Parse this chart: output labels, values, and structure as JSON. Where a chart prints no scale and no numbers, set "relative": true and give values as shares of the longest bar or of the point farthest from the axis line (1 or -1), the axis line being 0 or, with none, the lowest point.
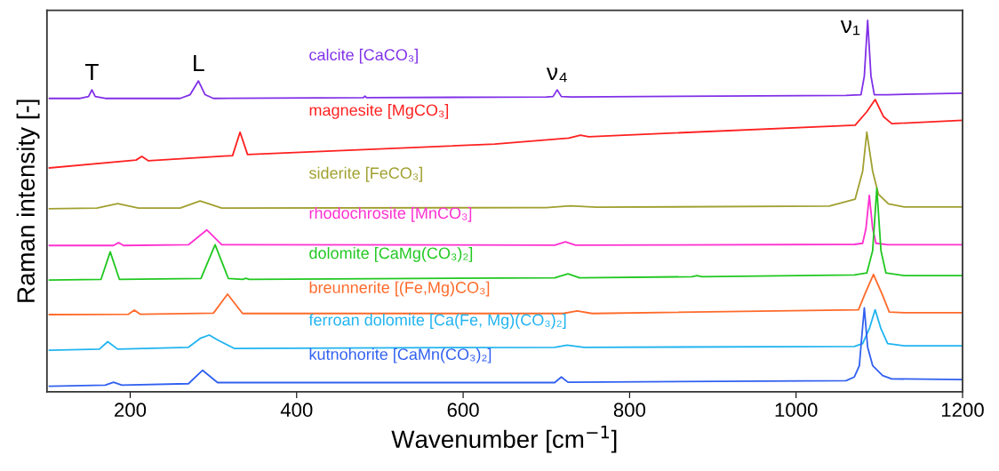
{
  "chart_data": {
    "type": "line",
    "relative": true,
    "xlabel": "Wavenumber [cm$^{−1}$]",
    "ylabel": "Raman intensity [-]",
    "xlim": [
      100,
      1200
    ],
    "xticks": [
      200,
      400,
      600,
      800,
      1000,
      1200
    ],
    "grid": false,
    "marker": "none",
    "line_style": "solid",
    "annotations": [
      {
        "text": "T",
        "x": 154,
        "y": 0.813
      },
      {
        "text": "L",
        "x": 282,
        "y": 0.837
      },
      {
        "text": "ν₄",
        "x": 713,
        "y": 0.813
      },
      {
        "text": "ν₁",
        "x": 1086,
        "y": 1.0
      }
    ],
    "series": [
      {
        "name": "calcite [CaCO₃]",
        "color": "#8030e8",
        "x": [
          103,
          140,
          150,
          154,
          158,
          170,
          260,
          272,
          282,
          290,
          300,
          480,
          482,
          484,
          700,
          708,
          713,
          718,
          730,
          1060,
          1078,
          1082,
          1086,
          1090,
          1094,
          1110,
          1200
        ],
        "values": [
          0.79,
          0.79,
          0.795,
          0.813,
          0.795,
          0.79,
          0.79,
          0.8,
          0.837,
          0.8,
          0.79,
          0.792,
          0.796,
          0.792,
          0.794,
          0.795,
          0.813,
          0.795,
          0.794,
          0.798,
          0.8,
          0.85,
          1.0,
          0.85,
          0.8,
          0.8,
          0.804
        ]
      },
      {
        "name": "magnesite [MgCO₃]",
        "color": "#ff2020",
        "x": [
          103,
          207,
          214,
          222,
          323,
          332,
          341,
          638,
          727,
          741,
          751,
          1071,
          1085,
          1095,
          1105,
          1115,
          1200
        ],
        "values": [
          0.603,
          0.624,
          0.634,
          0.622,
          0.636,
          0.699,
          0.639,
          0.667,
          0.683,
          0.691,
          0.687,
          0.718,
          0.754,
          0.787,
          0.741,
          0.722,
          0.731
        ]
      },
      {
        "name": "siderite [FeCO₃]",
        "color": "#a0a030",
        "x": [
          103,
          160,
          185,
          210,
          260,
          284,
          310,
          700,
          729,
          760,
          1040,
          1071,
          1080,
          1085,
          1092,
          1099,
          1111,
          1130,
          1200
        ],
        "values": [
          0.493,
          0.495,
          0.507,
          0.495,
          0.495,
          0.514,
          0.495,
          0.496,
          0.501,
          0.497,
          0.5,
          0.519,
          0.594,
          0.699,
          0.594,
          0.532,
          0.506,
          0.498,
          0.498
        ]
      },
      {
        "name": "rhodochrosite [MnCO₃]",
        "color": "#ff30d0",
        "x": [
          103,
          180,
          186,
          192,
          270,
          292,
          310,
          710,
          723,
          735,
          1070,
          1080,
          1084,
          1088,
          1092,
          1096,
          1110,
          1200
        ],
        "values": [
          0.394,
          0.394,
          0.402,
          0.394,
          0.396,
          0.436,
          0.396,
          0.395,
          0.404,
          0.395,
          0.397,
          0.4,
          0.44,
          0.529,
          0.44,
          0.4,
          0.396,
          0.396
        ]
      },
      {
        "name": "dolomite [CaMg(CO₃)₂]",
        "color": "#20c820",
        "x": [
          103,
          165,
          176,
          187,
          285,
          302,
          318,
          335,
          339,
          343,
          710,
          726,
          740,
          875,
          881,
          887,
          1070,
          1085,
          1092,
          1097,
          1102,
          1108,
          1130,
          1200
        ],
        "values": [
          0.301,
          0.303,
          0.377,
          0.303,
          0.305,
          0.396,
          0.305,
          0.303,
          0.306,
          0.303,
          0.307,
          0.318,
          0.307,
          0.31,
          0.313,
          0.31,
          0.315,
          0.32,
          0.38,
          0.548,
          0.38,
          0.32,
          0.313,
          0.313
        ]
      },
      {
        "name": "breunnerite [(Fe,Mg)CO₃]",
        "color": "#ff6a2a",
        "x": [
          103,
          198,
          205,
          212,
          300,
          317,
          335,
          720,
          737,
          755,
          1075,
          1083,
          1093,
          1103,
          1112,
          1130,
          1200
        ],
        "values": [
          0.208,
          0.209,
          0.22,
          0.209,
          0.212,
          0.263,
          0.211,
          0.211,
          0.218,
          0.211,
          0.221,
          0.265,
          0.316,
          0.265,
          0.215,
          0.213,
          0.213
        ]
      },
      {
        "name": "ferroan dolomite [Ca(Fe, Mg)(CO₃)₂]",
        "color": "#20b4f0",
        "x": [
          103,
          163,
          173,
          185,
          270,
          285,
          295,
          305,
          325,
          710,
          725,
          745,
          1070,
          1080,
          1088,
          1095,
          1102,
          1110,
          1130,
          1200
        ],
        "values": [
          0.112,
          0.115,
          0.135,
          0.115,
          0.12,
          0.145,
          0.153,
          0.14,
          0.117,
          0.12,
          0.126,
          0.12,
          0.122,
          0.13,
          0.17,
          0.221,
          0.17,
          0.13,
          0.124,
          0.124
        ]
      },
      {
        "name": "kutnohorite [CaMn(CO₃)₂]",
        "color": "#3060f0",
        "x": [
          103,
          170,
          180,
          190,
          270,
          287,
          305,
          710,
          718,
          726,
          1060,
          1070,
          1076,
          1079,
          1082,
          1086,
          1092,
          1104,
          1115,
          1200
        ],
        "values": [
          0.015,
          0.018,
          0.026,
          0.018,
          0.022,
          0.058,
          0.025,
          0.025,
          0.04,
          0.026,
          0.03,
          0.04,
          0.07,
          0.15,
          0.226,
          0.12,
          0.071,
          0.044,
          0.035,
          0.033
        ]
      }
    ]
  }
}
